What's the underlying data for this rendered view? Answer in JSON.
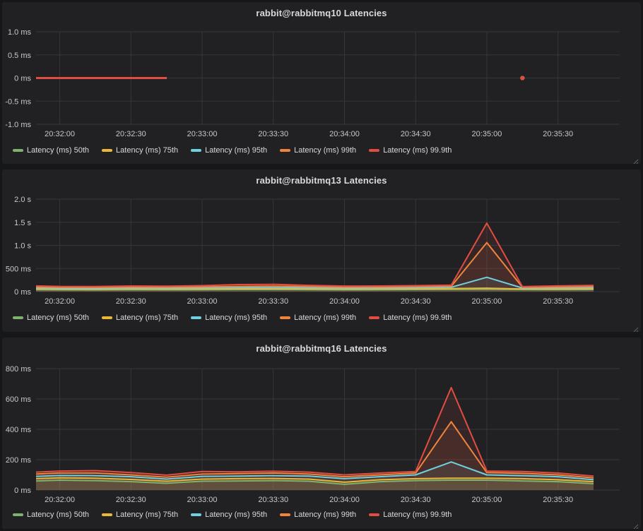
{
  "app": {
    "kind": "metrics-dashboard"
  },
  "colors": {
    "page_background": "#161719",
    "panel_background": "#212124",
    "gridline": "#36363a",
    "title_text": "#d8d9da",
    "axis_text": "#c7c8c9",
    "series_green": "#7EB26D",
    "series_yellow": "#EAB839",
    "series_cyan": "#6ED0E0",
    "series_orange": "#EF843C",
    "series_red": "#E24D42"
  },
  "chart_data": [
    {
      "type": "line",
      "title": "rabbit@rabbitmq10 Latencies",
      "xlabel": "",
      "ylabel": "",
      "x_start_time": "20:31:50",
      "x_domain": [
        0,
        246
      ],
      "x_tick_values": [
        10,
        40,
        70,
        100,
        130,
        160,
        190,
        220
      ],
      "x_tick_labels": [
        "20:32:00",
        "20:32:30",
        "20:33:00",
        "20:33:30",
        "20:34:00",
        "20:34:30",
        "20:35:00",
        "20:35:30"
      ],
      "y_unit": "ms",
      "y_domain": [
        -1,
        1
      ],
      "y_tick_values": [
        -1,
        -0.5,
        0,
        0.5,
        1
      ],
      "y_tick_labels": [
        "-1.0 ms",
        "-0.5 ms",
        "0 ms",
        "0.5 ms",
        "1.0 ms"
      ],
      "grid": true,
      "legend_position": "bottom-left",
      "fill_opacity": 0.1,
      "line_width": 3,
      "series": [
        {
          "name": "Latency (ms) 50th",
          "color": "#7EB26D",
          "points": [
            [
              0,
              0
            ],
            [
              55,
              0
            ]
          ],
          "dots": [
            [
              205,
              0
            ]
          ]
        },
        {
          "name": "Latency (ms) 75th",
          "color": "#EAB839",
          "points": [
            [
              0,
              0
            ],
            [
              55,
              0
            ]
          ],
          "dots": [
            [
              205,
              0
            ]
          ]
        },
        {
          "name": "Latency (ms) 95th",
          "color": "#6ED0E0",
          "points": [
            [
              0,
              0
            ],
            [
              55,
              0
            ]
          ],
          "dots": [
            [
              205,
              0
            ]
          ]
        },
        {
          "name": "Latency (ms) 99th",
          "color": "#EF843C",
          "points": [
            [
              0,
              0
            ],
            [
              55,
              0
            ]
          ],
          "dots": [
            [
              205,
              0
            ]
          ]
        },
        {
          "name": "Latency (ms) 99.9th",
          "color": "#E24D42",
          "points": [
            [
              0,
              0
            ],
            [
              55,
              0
            ]
          ],
          "dots": [
            [
              205,
              0
            ]
          ]
        }
      ]
    },
    {
      "type": "line",
      "title": "rabbit@rabbitmq13 Latencies",
      "xlabel": "",
      "ylabel": "",
      "x_start_time": "20:31:50",
      "x_domain": [
        0,
        246
      ],
      "x_tick_values": [
        10,
        40,
        70,
        100,
        130,
        160,
        190,
        220
      ],
      "x_tick_labels": [
        "20:32:00",
        "20:32:30",
        "20:33:00",
        "20:33:30",
        "20:34:00",
        "20:34:30",
        "20:35:00",
        "20:35:30"
      ],
      "y_unit": "ms",
      "y_domain": [
        0,
        2000
      ],
      "y_tick_values": [
        0,
        500,
        1000,
        1500,
        2000
      ],
      "y_tick_labels": [
        "0 ms",
        "500 ms",
        "1.0 s",
        "1.5 s",
        "2.0 s"
      ],
      "grid": true,
      "legend_position": "bottom-left",
      "fill_opacity": 0.1,
      "line_width": 2,
      "x_values": [
        0,
        10,
        25,
        40,
        55,
        70,
        85,
        100,
        115,
        130,
        145,
        160,
        175,
        190,
        205,
        220,
        235
      ],
      "series": [
        {
          "name": "Latency (ms) 50th",
          "color": "#7EB26D",
          "values": [
            42,
            40,
            38,
            42,
            40,
            42,
            45,
            46,
            44,
            40,
            42,
            45,
            48,
            52,
            45,
            44,
            46
          ]
        },
        {
          "name": "Latency (ms) 75th",
          "color": "#EAB839",
          "values": [
            58,
            54,
            52,
            58,
            55,
            58,
            62,
            64,
            60,
            55,
            58,
            60,
            66,
            75,
            58,
            58,
            62
          ]
        },
        {
          "name": "Latency (ms) 95th",
          "color": "#6ED0E0",
          "values": [
            80,
            74,
            72,
            78,
            76,
            80,
            85,
            88,
            82,
            76,
            78,
            84,
            95,
            310,
            78,
            82,
            86
          ]
        },
        {
          "name": "Latency (ms) 99th",
          "color": "#EF843C",
          "values": [
            102,
            96,
            94,
            100,
            98,
            104,
            112,
            118,
            108,
            98,
            100,
            106,
            115,
            1060,
            95,
            102,
            108
          ]
        },
        {
          "name": "Latency (ms) 99.9th",
          "color": "#E24D42",
          "values": [
            125,
            112,
            110,
            122,
            118,
            130,
            152,
            158,
            135,
            120,
            122,
            130,
            140,
            1480,
            108,
            125,
            135
          ]
        }
      ]
    },
    {
      "type": "line",
      "title": "rabbit@rabbitmq16 Latencies",
      "xlabel": "",
      "ylabel": "",
      "x_start_time": "20:31:50",
      "x_domain": [
        0,
        246
      ],
      "x_tick_values": [
        10,
        40,
        70,
        100,
        130,
        160,
        190,
        220
      ],
      "x_tick_labels": [
        "20:32:00",
        "20:32:30",
        "20:33:00",
        "20:33:30",
        "20:34:00",
        "20:34:30",
        "20:35:00",
        "20:35:30"
      ],
      "y_unit": "ms",
      "y_domain": [
        0,
        800
      ],
      "y_tick_values": [
        0,
        200,
        400,
        600,
        800
      ],
      "y_tick_labels": [
        "0 ms",
        "200 ms",
        "400 ms",
        "600 ms",
        "800 ms"
      ],
      "grid": true,
      "legend_position": "bottom-left",
      "fill_opacity": 0.1,
      "line_width": 2,
      "x_values": [
        0,
        10,
        25,
        40,
        55,
        70,
        85,
        100,
        115,
        130,
        145,
        160,
        175,
        190,
        205,
        220,
        235
      ],
      "series": [
        {
          "name": "Latency (ms) 50th",
          "color": "#7EB26D",
          "values": [
            60,
            65,
            62,
            55,
            45,
            58,
            60,
            62,
            58,
            38,
            55,
            62,
            65,
            65,
            60,
            55,
            42
          ]
        },
        {
          "name": "Latency (ms) 75th",
          "color": "#EAB839",
          "values": [
            75,
            80,
            78,
            70,
            58,
            72,
            75,
            76,
            72,
            52,
            68,
            75,
            78,
            78,
            75,
            68,
            55
          ]
        },
        {
          "name": "Latency (ms) 95th",
          "color": "#6ED0E0",
          "values": [
            90,
            96,
            95,
            88,
            72,
            90,
            92,
            95,
            92,
            75,
            88,
            100,
            185,
            100,
            95,
            88,
            68
          ]
        },
        {
          "name": "Latency (ms) 99th",
          "color": "#EF843C",
          "values": [
            105,
            112,
            112,
            100,
            85,
            105,
            108,
            112,
            105,
            88,
            100,
            112,
            450,
            115,
            110,
            100,
            80
          ]
        },
        {
          "name": "Latency (ms) 99.9th",
          "color": "#E24D42",
          "values": [
            118,
            125,
            128,
            115,
            98,
            122,
            120,
            124,
            118,
            100,
            112,
            122,
            675,
            125,
            122,
            112,
            92
          ]
        }
      ]
    }
  ]
}
